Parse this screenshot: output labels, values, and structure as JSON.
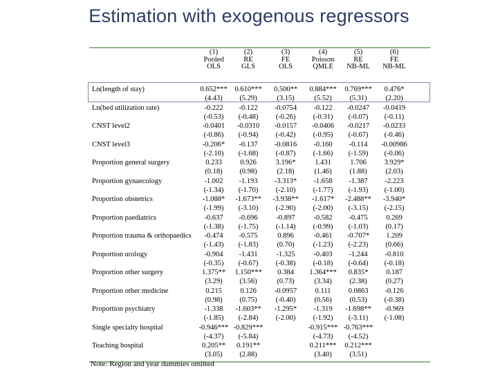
{
  "title": "Estimation with exogenous regressors",
  "columns": [
    {
      "num": "(1)",
      "l1": "Pooled",
      "l2": "OLS"
    },
    {
      "num": "(2)",
      "l1": "RE",
      "l2": "GLS"
    },
    {
      "num": "(3)",
      "l1": "FE",
      "l2": "OLS"
    },
    {
      "num": "(4)",
      "l1": "Poisson",
      "l2": "QMLE"
    },
    {
      "num": "(5)",
      "l1": "RE",
      "l2": "NB-ML"
    },
    {
      "num": "(6)",
      "l1": "FE",
      "l2": "NB-ML"
    }
  ],
  "rows": [
    {
      "label": "Ln(length of stay)",
      "coef": [
        "0.652***",
        "0.610***",
        "0.500**",
        "0.884***",
        "0.769***",
        "0.476*"
      ],
      "t": [
        "(4.43)",
        "(5.29)",
        "(3.15)",
        "(5.52)",
        "(5.31)",
        "(2.20)"
      ]
    },
    {
      "label": "Ln(bed utilization rate)",
      "coef": [
        "-0.222",
        "-0.122",
        "-0.0754",
        "-0.122",
        "-0.0247",
        "-0.0419"
      ],
      "t": [
        "(-0.53)",
        "(-0.48)",
        "(-0.26)",
        "(-0.31)",
        "(-0.07)",
        "(-0.11)"
      ]
    },
    {
      "label": "CNST level2",
      "coef": [
        "-0.0401",
        "-0.0310",
        "-0.0157",
        "-0.0406",
        "-0.0217",
        "-0.0233"
      ],
      "t": [
        "(-0.86)",
        "(-0.94)",
        "(-0.42)",
        "(-0.95)",
        "(-0.67)",
        "(-0.46)"
      ]
    },
    {
      "label": "CNST level3",
      "coef": [
        "-0.206*",
        "-0.137",
        "-0.0816",
        "-0.160",
        "-0.114",
        "-0.00986"
      ],
      "t": [
        "(-2.10)",
        "(-1.68)",
        "(-0.87)",
        "(-1.66)",
        "(-1.59)",
        "(-0.06)"
      ]
    },
    {
      "label": "Proportion general surgery",
      "coef": [
        "0.233",
        "0.926",
        "3.196*",
        "1.431",
        "1.706",
        "3.929*"
      ],
      "t": [
        "(0.18)",
        "(0.98)",
        "(2.18)",
        "(1.46)",
        "(1.88)",
        "(2.03)"
      ]
    },
    {
      "label": "Proportion gynaecology",
      "coef": [
        "-1.002",
        "-1.193",
        "-3.313*",
        "-1.658",
        "-1.387",
        "-2.223"
      ],
      "t": [
        "(-1.34)",
        "(-1.70)",
        "(-2.10)",
        "(-1.77)",
        "(-1.93)",
        "(-1.00)"
      ]
    },
    {
      "label": "Proportion obstetrics",
      "coef": [
        "-1.088*",
        "-1.673**",
        "-3.938**",
        "-1.617*",
        "-2.488**",
        "-3.940*"
      ],
      "t": [
        "(-1.99)",
        "(-3.10)",
        "(-2.90)",
        "(-2.00)",
        "(-3.15)",
        "(-2.15)"
      ]
    },
    {
      "label": "Proportion paediatrics",
      "coef": [
        "-0.637",
        "-0.696",
        "-0.897",
        "-0.582",
        "-0.475",
        "0.269"
      ],
      "t": [
        "(-1.38)",
        "(-1.75)",
        "(-1.14)",
        "(-0.99)",
        "(-1.03)",
        "(0.17)"
      ]
    },
    {
      "label": "Proportion trauma & orthopaedics",
      "coef": [
        "-0.474",
        "-0.575",
        "0.896",
        "-0.461",
        "-0.707*",
        "1.209"
      ],
      "t": [
        "(-1.43)",
        "(-1.83)",
        "(0.70)",
        "(-1.23)",
        "(-2.23)",
        "(0.66)"
      ]
    },
    {
      "label": "Proportion urology",
      "coef": [
        "-0.904",
        "-1.431",
        "-1.325",
        "-0.403",
        "-1.244",
        "-0.810"
      ],
      "t": [
        "(-0.35)",
        "(-0.67)",
        "(-0.38)",
        "(-0.18)",
        "(-0.64)",
        "(-0.18)"
      ]
    },
    {
      "label": "Proportion other surgery",
      "coef": [
        "1.375**",
        "1.150***",
        "0.384",
        "1.364***",
        "0.835*",
        "0.187"
      ],
      "t": [
        "(3.29)",
        "(3.56)",
        "(0.73)",
        "(3.34)",
        "(2.38)",
        "(0.27)"
      ]
    },
    {
      "label": "Proportion other medicine",
      "coef": [
        "0.215",
        "0.126",
        "-0.0957",
        "0.111",
        "0.0863",
        "-0.126"
      ],
      "t": [
        "(0.98)",
        "(0.75)",
        "(-0.40)",
        "(0.56)",
        "(0.53)",
        "(-0.38)"
      ]
    },
    {
      "label": "Proportion psychiatry",
      "coef": [
        "-1.338",
        "-1.603**",
        "-1.295*",
        "-1.319",
        "-1.698**",
        "-0.969"
      ],
      "t": [
        "(-1.85)",
        "(-2.84)",
        "(-2.00)",
        "(-1.92)",
        "(-3.11)",
        "(-1.08)"
      ]
    },
    {
      "label": "Single specialty hospital",
      "coef": [
        "-0.946***",
        "-0.829***",
        "",
        "-0.915***",
        "-0.763***",
        ""
      ],
      "t": [
        "(-4.37)",
        "(-5.84)",
        "",
        "(-4.73)",
        "(-4.52)",
        ""
      ]
    },
    {
      "label": "Teaching hospital",
      "coef": [
        "0.205**",
        "0.191**",
        "",
        "0.211***",
        "0.212***",
        ""
      ],
      "t": [
        "(3.05)",
        "(2.88)",
        "",
        "(3.40)",
        "(3.51)",
        ""
      ]
    }
  ],
  "note": "Note: Region and year dummies omitted"
}
